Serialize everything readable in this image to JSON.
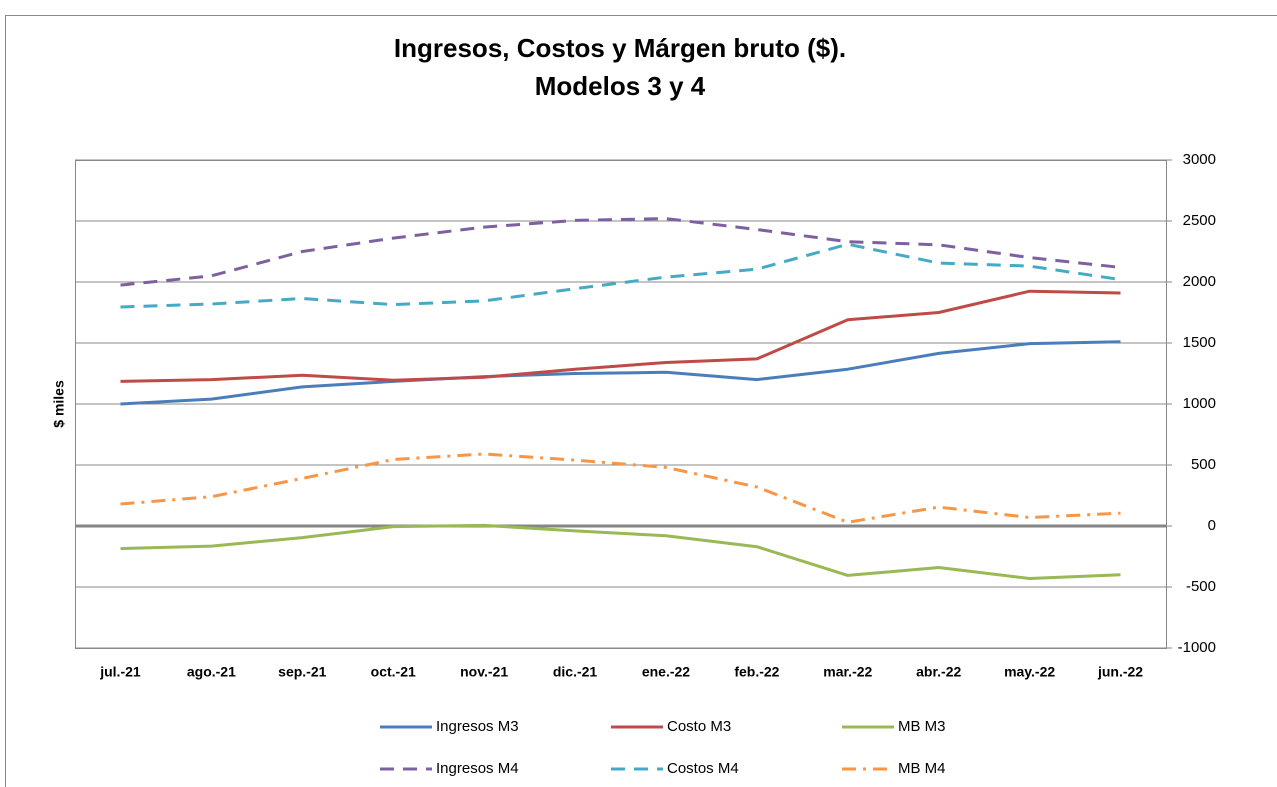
{
  "chart_data": {
    "type": "line",
    "title": [
      "Ingresos, Costos y Márgen bruto ($).",
      "Modelos 3 y 4"
    ],
    "y_axis_label": "$ miles",
    "categories": [
      "jul.-21",
      "ago.-21",
      "sep.-21",
      "oct.-21",
      "nov.-21",
      "dic.-21",
      "ene.-22",
      "feb.-22",
      "mar.-22",
      "abr.-22",
      "may.-22",
      "jun.-22"
    ],
    "series": [
      {
        "name": "Ingresos M3",
        "color": "#4a7ebb",
        "style": "solid",
        "values": [
          1000,
          1040,
          1140,
          1185,
          1225,
          1250,
          1260,
          1200,
          1285,
          1415,
          1495,
          1510
        ]
      },
      {
        "name": "Costo M3",
        "color": "#be4b48",
        "style": "solid",
        "values": [
          1185,
          1200,
          1235,
          1195,
          1220,
          1285,
          1340,
          1370,
          1690,
          1750,
          1925,
          1910
        ]
      },
      {
        "name": "MB M3",
        "color": "#98b954",
        "style": "solid",
        "values": [
          -185,
          -165,
          -95,
          -5,
          5,
          -40,
          -80,
          -170,
          -405,
          -340,
          -430,
          -400
        ]
      },
      {
        "name": "Ingresos M4",
        "color": "#7d60a0",
        "style": "dashed",
        "values": [
          1975,
          2050,
          2250,
          2360,
          2450,
          2505,
          2520,
          2430,
          2330,
          2305,
          2200,
          2120
        ]
      },
      {
        "name": "Costos M4",
        "color": "#46aac5",
        "style": "dashed",
        "values": [
          1795,
          1820,
          1865,
          1815,
          1845,
          1945,
          2040,
          2105,
          2310,
          2155,
          2130,
          2020
        ]
      },
      {
        "name": "MB M4",
        "color": "#f79646",
        "style": "dashdot",
        "values": [
          180,
          240,
          390,
          545,
          590,
          540,
          480,
          320,
          30,
          155,
          70,
          105
        ]
      }
    ],
    "ylim": [
      -1000,
      3000
    ],
    "yticks": [
      -1000,
      -500,
      0,
      500,
      1000,
      1500,
      2000,
      2500,
      3000
    ],
    "y_axis_side": "right",
    "grid": true,
    "legend": "bottom"
  }
}
